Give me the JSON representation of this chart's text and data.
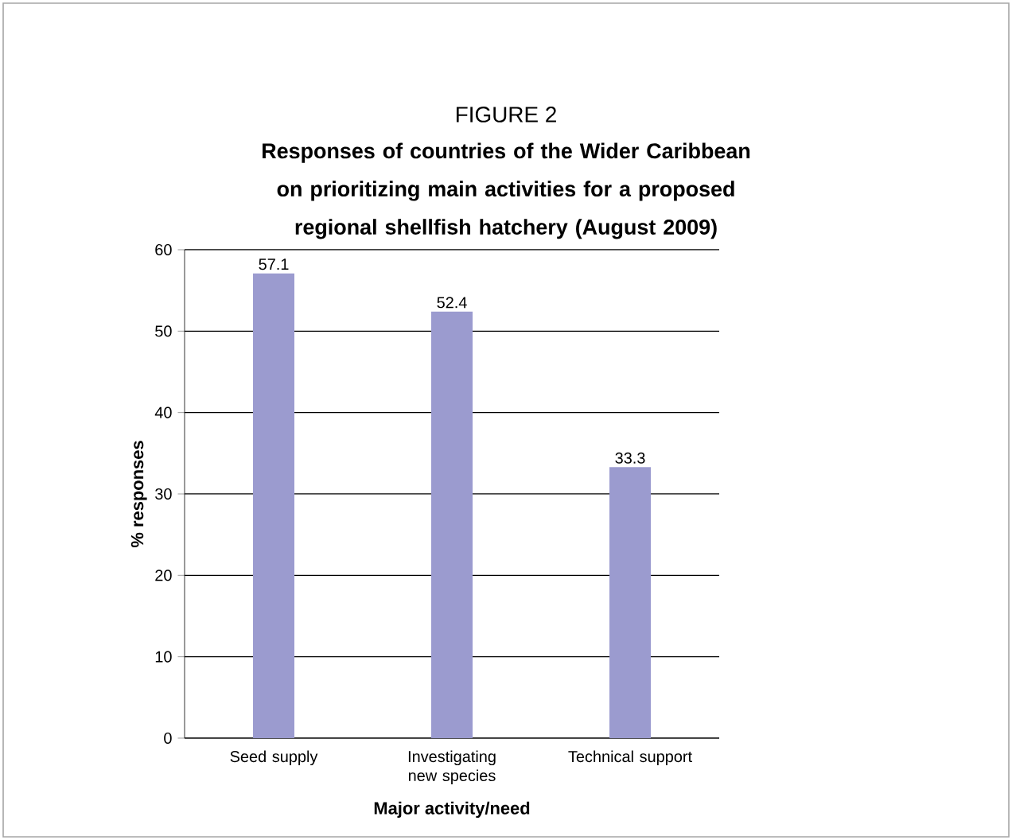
{
  "chart_data": {
    "type": "bar",
    "title": "FIGURE 2",
    "subtitle": "Responses of countries of the Wider Caribbean on prioritizing main activities for a proposed regional shellfish hatchery (August 2009)",
    "xlabel": "Major activity/need",
    "ylabel": "% responses",
    "categories": [
      "Seed supply",
      "Investigating new species",
      "Technical support"
    ],
    "values": [
      57.1,
      52.4,
      33.3
    ],
    "value_labels": [
      "57.1",
      "52.4",
      "33.3"
    ],
    "color": "#9b9bcf",
    "ylim": [
      0,
      60
    ],
    "yticks": [
      0,
      10,
      20,
      30,
      40,
      50,
      60
    ],
    "grid": "y"
  }
}
